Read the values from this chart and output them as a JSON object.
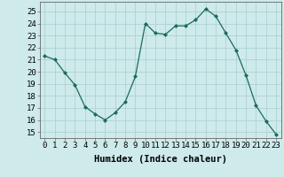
{
  "x": [
    0,
    1,
    2,
    3,
    4,
    5,
    6,
    7,
    8,
    9,
    10,
    11,
    12,
    13,
    14,
    15,
    16,
    17,
    18,
    19,
    20,
    21,
    22,
    23
  ],
  "y": [
    21.3,
    21.0,
    19.9,
    18.9,
    17.1,
    16.5,
    16.0,
    16.6,
    17.5,
    19.6,
    24.0,
    23.2,
    23.1,
    23.8,
    23.8,
    24.3,
    25.2,
    24.6,
    23.2,
    21.8,
    19.7,
    17.2,
    15.9,
    14.8
  ],
  "line_color": "#1a6b5a",
  "marker": "D",
  "marker_size": 2,
  "bg_color": "#ceeaea",
  "grid_color": "#aacece",
  "xlabel": "Humidex (Indice chaleur)",
  "ylim_min": 14.5,
  "ylim_max": 25.8,
  "xlim_min": -0.5,
  "xlim_max": 23.5,
  "yticks": [
    15,
    16,
    17,
    18,
    19,
    20,
    21,
    22,
    23,
    24,
    25
  ],
  "xtick_labels": [
    "0",
    "1",
    "2",
    "3",
    "4",
    "5",
    "6",
    "7",
    "8",
    "9",
    "10",
    "11",
    "12",
    "13",
    "14",
    "15",
    "16",
    "17",
    "18",
    "19",
    "20",
    "21",
    "22",
    "23"
  ],
  "xlabel_fontsize": 7.5,
  "tick_fontsize": 6.5,
  "linewidth": 0.9
}
